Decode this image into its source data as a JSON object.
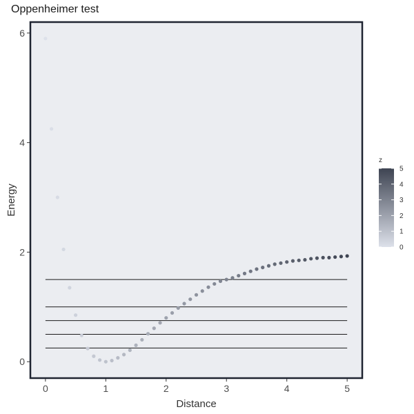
{
  "chart_data": {
    "type": "scatter",
    "title": "Oppenheimer test",
    "xlabel": "Distance",
    "ylabel": "Energy",
    "xlim": [
      -0.25,
      5.25
    ],
    "ylim": [
      -0.3,
      6.2
    ],
    "xticks": [
      0,
      1,
      2,
      3,
      4,
      5
    ],
    "yticks": [
      0,
      2,
      4,
      6
    ],
    "grid": false,
    "hlines": [
      0.25,
      0.5,
      0.75,
      1.0,
      1.5
    ],
    "hline_x_range": [
      0,
      5
    ],
    "colorbar": {
      "title": "z",
      "ticks": [
        0,
        1,
        2,
        3,
        4,
        5
      ],
      "range": [
        0,
        5
      ],
      "color_low": "#dde1ea",
      "color_high": "#3e4452",
      "placement": "right"
    },
    "panel_background": "#ebedf1",
    "panel_border": "#1f2431",
    "series": [
      {
        "x": [
          0.0,
          0.1,
          0.2,
          0.3,
          0.4,
          0.5,
          0.6,
          0.7,
          0.8,
          0.9,
          1.0,
          1.1,
          1.2,
          1.3,
          1.4,
          1.5,
          1.6,
          1.7,
          1.8,
          1.9,
          2.0,
          2.1,
          2.2,
          2.3,
          2.4,
          2.5,
          2.6,
          2.7,
          2.8,
          2.9,
          3.0,
          3.1,
          3.2,
          3.3,
          3.4,
          3.5,
          3.6,
          3.7,
          3.8,
          3.9,
          4.0,
          4.1,
          4.2,
          4.3,
          4.4,
          4.5,
          4.6,
          4.7,
          4.8,
          4.9,
          5.0
        ],
        "y": [
          5.9,
          4.25,
          3.0,
          2.05,
          1.35,
          0.85,
          0.48,
          0.24,
          0.1,
          0.03,
          0.0,
          0.02,
          0.07,
          0.13,
          0.21,
          0.3,
          0.4,
          0.51,
          0.61,
          0.71,
          0.8,
          0.89,
          0.98,
          1.06,
          1.14,
          1.22,
          1.29,
          1.36,
          1.42,
          1.47,
          1.5,
          1.53,
          1.57,
          1.61,
          1.65,
          1.69,
          1.72,
          1.75,
          1.78,
          1.8,
          1.82,
          1.84,
          1.85,
          1.86,
          1.88,
          1.89,
          1.9,
          1.9,
          1.91,
          1.92,
          1.93
        ],
        "z": [
          0.0,
          0.1,
          0.2,
          0.3,
          0.4,
          0.5,
          0.6,
          0.7,
          0.8,
          0.9,
          1.0,
          1.1,
          1.2,
          1.3,
          1.4,
          1.5,
          1.6,
          1.7,
          1.8,
          1.9,
          2.0,
          2.1,
          2.2,
          2.3,
          2.4,
          2.5,
          2.6,
          2.7,
          2.8,
          2.9,
          3.0,
          3.1,
          3.2,
          3.3,
          3.4,
          3.5,
          3.6,
          3.7,
          3.8,
          3.9,
          4.0,
          4.1,
          4.2,
          4.3,
          4.4,
          4.5,
          4.6,
          4.7,
          4.8,
          4.9,
          5.0
        ]
      }
    ]
  }
}
